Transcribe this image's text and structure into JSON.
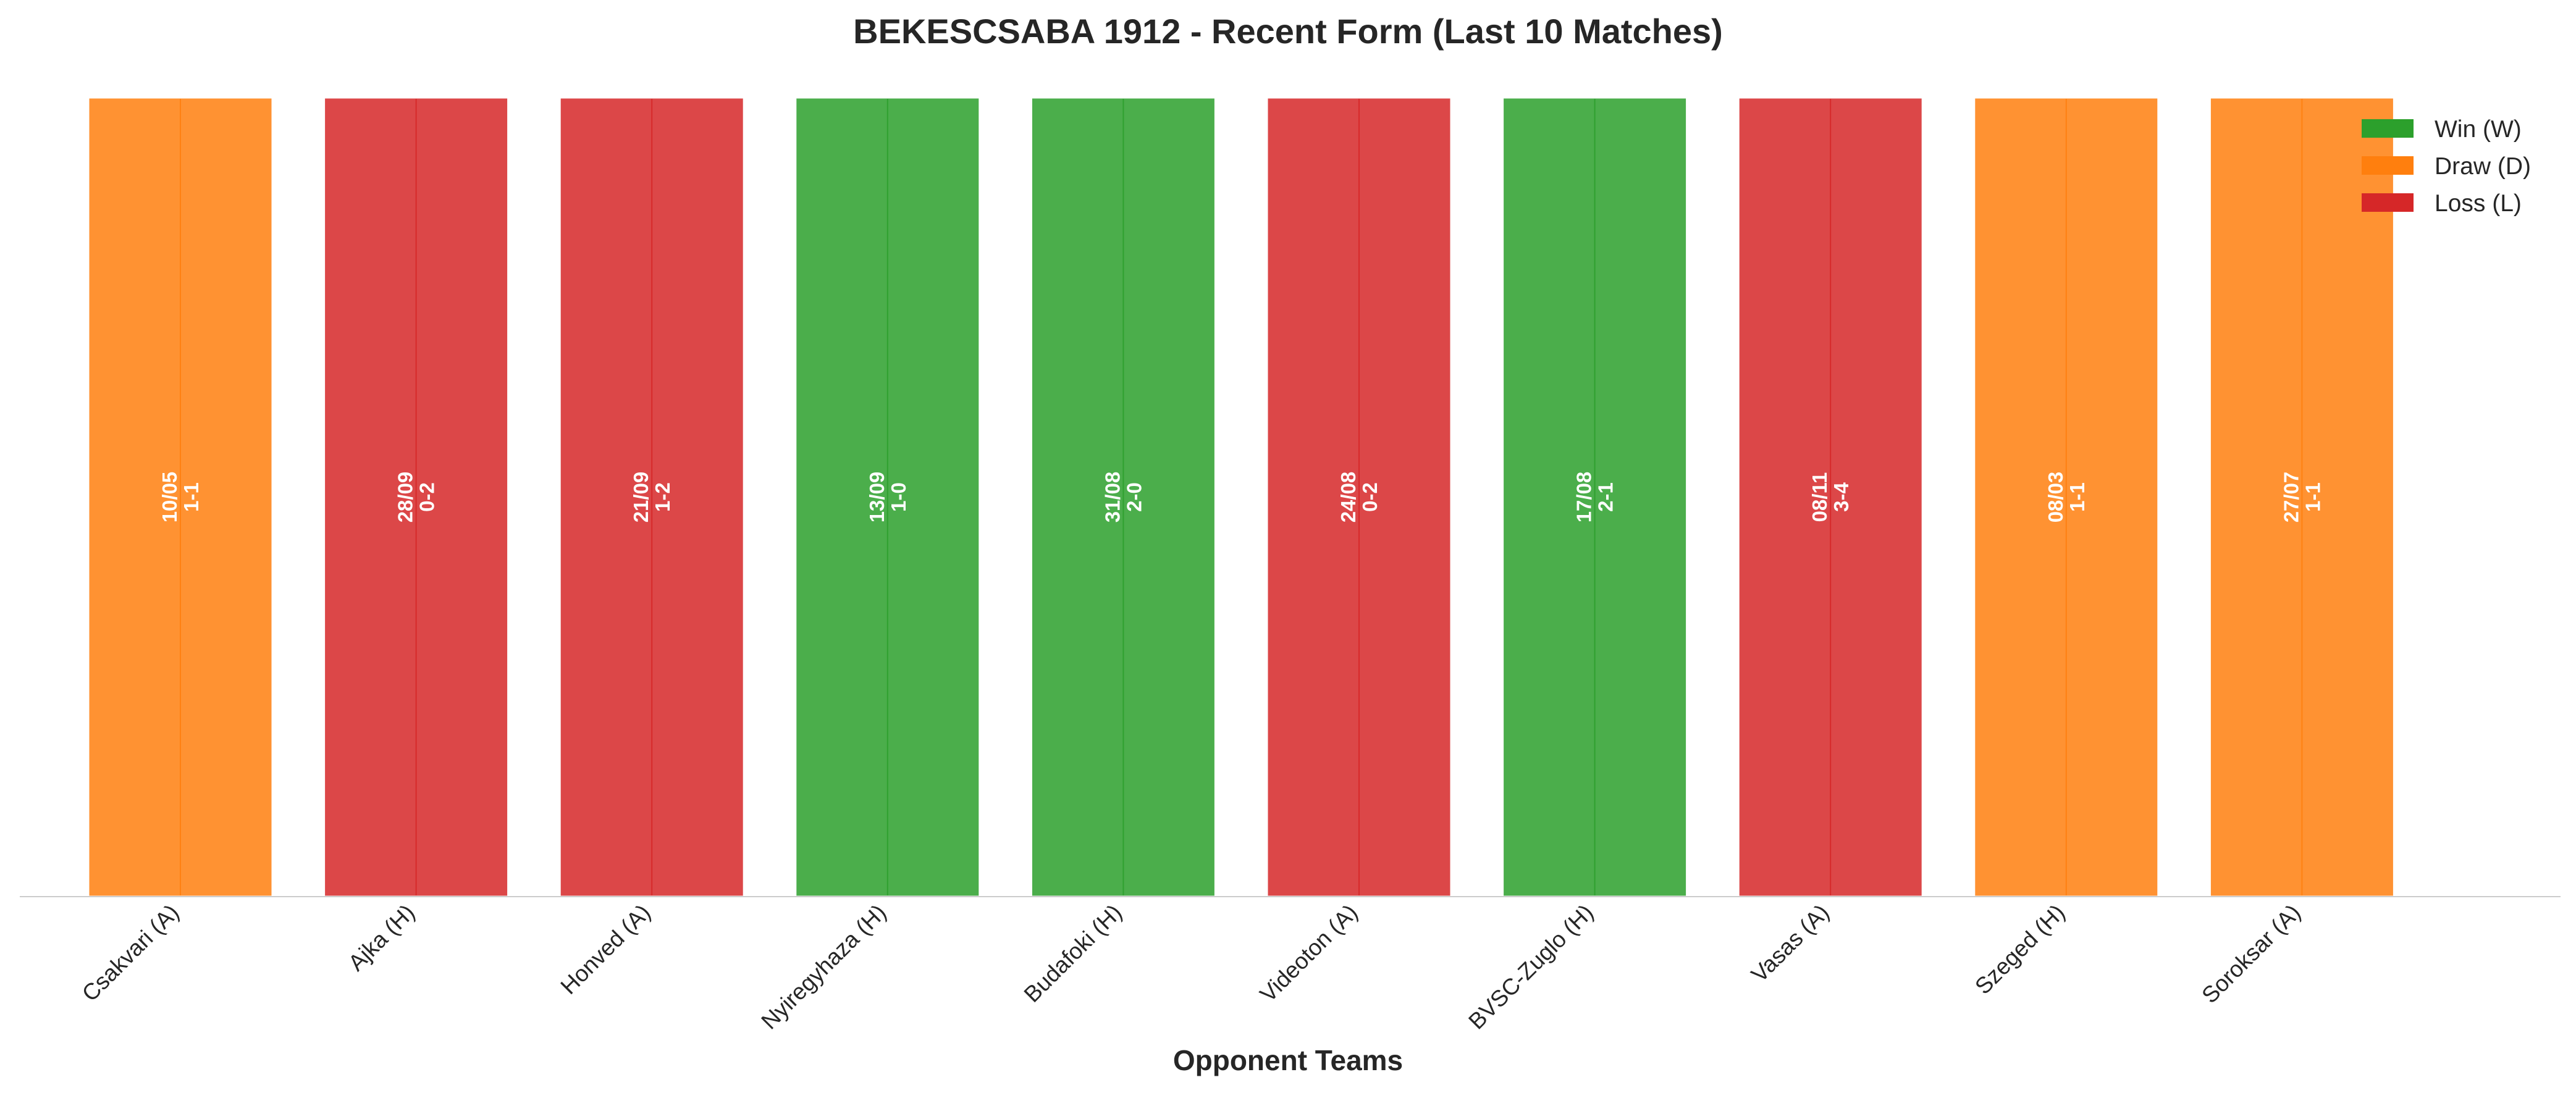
{
  "chart_data": {
    "type": "bar",
    "title": "BEKESCSABA 1912 - Recent Form (Last 10 Matches)",
    "xlabel": "Opponent Teams",
    "ylabel": "",
    "ylim": [
      0,
      1
    ],
    "grid": false,
    "legend_position": "top-right",
    "categories": [
      "Csakvari (A)",
      "Ajka (H)",
      "Honved (A)",
      "Nyiregyhaza (H)",
      "Budafoki (H)",
      "Videoton (A)",
      "BVSC-Zuglo (H)",
      "Vasas (A)",
      "Szeged (H)",
      "Soroksar (A)"
    ],
    "values": [
      1,
      1,
      1,
      1,
      1,
      1,
      1,
      1,
      1,
      1
    ],
    "results": [
      "D",
      "L",
      "L",
      "W",
      "W",
      "L",
      "W",
      "L",
      "D",
      "D"
    ],
    "dates": [
      "10/05",
      "28/09",
      "21/09",
      "13/09",
      "31/08",
      "24/08",
      "17/08",
      "08/11",
      "08/03",
      "27/07"
    ],
    "scores": [
      "1-1",
      "0-2",
      "1-2",
      "1-0",
      "2-0",
      "0-2",
      "2-1",
      "3-4",
      "1-1",
      "1-1"
    ],
    "colors": {
      "W": "#2ca02c",
      "D": "#ff7f0e",
      "L": "#d62728"
    },
    "legend": [
      {
        "key": "W",
        "label": "Win (W)"
      },
      {
        "key": "D",
        "label": "Draw (D)"
      },
      {
        "key": "L",
        "label": "Loss (L)"
      }
    ]
  }
}
